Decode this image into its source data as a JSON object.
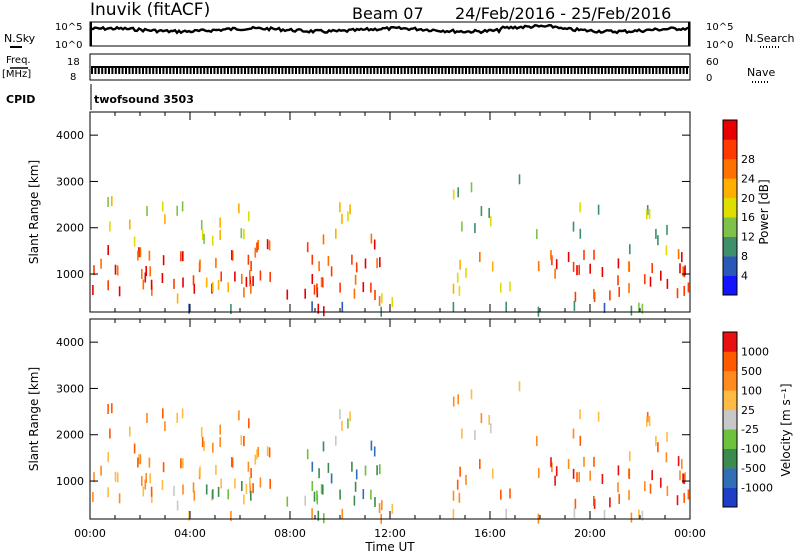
{
  "header": {
    "station": "Inuvik (fitACF)",
    "beam": "Beam 07",
    "dates": "24/Feb/2016 - 25/Feb/2016"
  },
  "top_panels": {
    "nsky_label": "N.Sky",
    "nsearch_label": "N.Search",
    "nsky_ticks": [
      "10^5",
      "10^0"
    ],
    "nsearch_ticks": [
      "10^5",
      "10^0"
    ],
    "freq_label": "Freq.",
    "freq_unit": "[MHz]",
    "freq_ticks": [
      "18",
      "8"
    ],
    "nave_label": "Nave",
    "nave_ticks": [
      "60",
      "0"
    ],
    "cpid_label": "CPID",
    "cpid_value": "twofsound 3503"
  },
  "colors": {
    "power": [
      "#1414ff",
      "#2b58b8",
      "#3f8f6a",
      "#7fc24a",
      "#dede00",
      "#ffaf00",
      "#ff7000",
      "#ff3a00",
      "#e60000"
    ],
    "velocity": [
      "#1e3ec8",
      "#2f6fb8",
      "#3c8a4e",
      "#6cc23a",
      "#c8c8c8",
      "#ffbb44",
      "#ff8a1e",
      "#ff5a00",
      "#e81010"
    ]
  },
  "chart_data": [
    {
      "type": "heatmap",
      "ylabel": "Slant Range [km]",
      "xlabel": "Time UT",
      "x_ticks": [
        "00:00",
        "04:00",
        "08:00",
        "12:00",
        "16:00",
        "20:00",
        "00:00"
      ],
      "x_range_hours": [
        0,
        24
      ],
      "y_ticks": [
        1000,
        2000,
        3000,
        4000
      ],
      "ylim": [
        180,
        4500
      ],
      "colorbar": {
        "label": "Power [dB]",
        "ticks": [
          "4",
          "8",
          "12",
          "16",
          "20",
          "24",
          "28"
        ],
        "range": [
          0,
          30
        ]
      }
    },
    {
      "type": "heatmap",
      "ylabel": "Slant Range [km]",
      "xlabel": "Time UT",
      "x_ticks": [
        "00:00",
        "04:00",
        "08:00",
        "12:00",
        "16:00",
        "20:00",
        "00:00"
      ],
      "x_range_hours": [
        0,
        24
      ],
      "y_ticks": [
        1000,
        2000,
        3000,
        4000
      ],
      "ylim": [
        180,
        4500
      ],
      "colorbar": {
        "label": "Velocity [m s⁻¹]",
        "ticks": [
          "1000",
          "500",
          "100",
          "25",
          "-25",
          "-100",
          "-500",
          "-1000"
        ]
      }
    }
  ]
}
